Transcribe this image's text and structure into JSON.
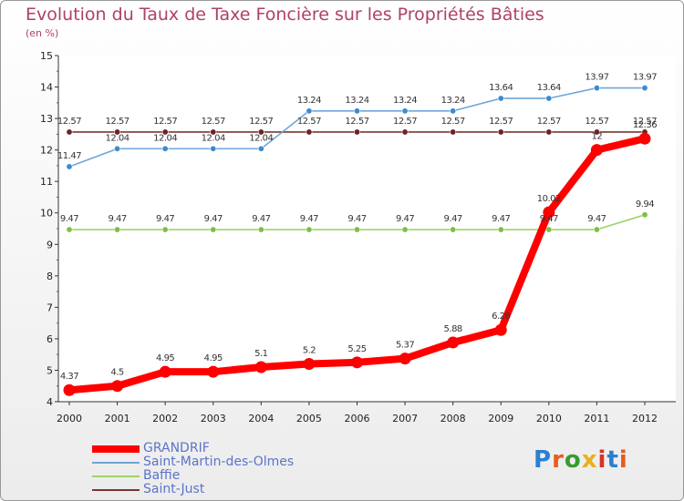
{
  "header": {
    "title": "Evolution du Taux de Taxe Foncière sur les Propriétés Bâties",
    "subtitle": "(en %)"
  },
  "brand": {
    "logo_text": "Proxiti",
    "logo_colors": [
      "#2b7fd0",
      "#e85c1f",
      "#3a9b2e",
      "#e8b01d",
      "#d73127",
      "#2b7fd0",
      "#e85c1f"
    ]
  },
  "chart_data": {
    "type": "line",
    "title": "Evolution du Taux de Taxe Foncière sur les Propriétés Bâties",
    "ylabel": "(en %)",
    "xlabel": "",
    "x": [
      "2000",
      "2001",
      "2002",
      "2003",
      "2004",
      "2005",
      "2006",
      "2007",
      "2008",
      "2009",
      "2010",
      "2011",
      "2012"
    ],
    "ylim": [
      4,
      15
    ],
    "yticks": [
      4,
      5,
      6,
      7,
      8,
      9,
      10,
      11,
      12,
      13,
      14,
      15
    ],
    "legend_position": "bottom-left",
    "series": [
      {
        "name": "GRANDRIF",
        "color": "#ff0000",
        "marker": "#ff0000",
        "width": 8,
        "values": [
          4.37,
          4.5,
          4.95,
          4.95,
          5.1,
          5.2,
          5.25,
          5.37,
          5.88,
          6.28,
          10.02,
          12,
          12.36
        ],
        "labels": [
          "4.37",
          "4.5",
          "4.95",
          "4.95",
          "5.1",
          "5.2",
          "5.25",
          "5.37",
          "5.88",
          "6.28",
          "10.02",
          "12",
          "12.36"
        ]
      },
      {
        "name": "Saint-Martin-des-Olmes",
        "color": "#6fa6d9",
        "marker": "#3d8ad0",
        "width": 1.6,
        "values": [
          11.47,
          12.04,
          12.04,
          12.04,
          12.04,
          13.24,
          13.24,
          13.24,
          13.24,
          13.64,
          13.64,
          13.97,
          13.97
        ],
        "labels": [
          "11.47",
          "12.04",
          "12.04",
          "12.04",
          "12.04",
          "13.24",
          "13.24",
          "13.24",
          "13.24",
          "13.64",
          "13.64",
          "13.97",
          "13.97"
        ]
      },
      {
        "name": "Baffie",
        "color": "#9ed26a",
        "marker": "#7cc043",
        "width": 1.6,
        "values": [
          9.47,
          9.47,
          9.47,
          9.47,
          9.47,
          9.47,
          9.47,
          9.47,
          9.47,
          9.47,
          9.47,
          9.47,
          9.94
        ],
        "labels": [
          "9.47",
          "9.47",
          "9.47",
          "9.47",
          "9.47",
          "9.47",
          "9.47",
          "9.47",
          "9.47",
          "9.47",
          "9.47",
          "9.47",
          "9.94"
        ]
      },
      {
        "name": "Saint-Just",
        "color": "#7a3535",
        "marker": "#6b2424",
        "width": 1.6,
        "values": [
          12.57,
          12.57,
          12.57,
          12.57,
          12.57,
          12.57,
          12.57,
          12.57,
          12.57,
          12.57,
          12.57,
          12.57,
          12.57
        ],
        "labels": [
          "12.57",
          "12.57",
          "12.57",
          "12.57",
          "12.57",
          "12.57",
          "12.57",
          "12.57",
          "12.57",
          "12.57",
          "12.57",
          "12.57",
          "12.57"
        ]
      }
    ]
  }
}
